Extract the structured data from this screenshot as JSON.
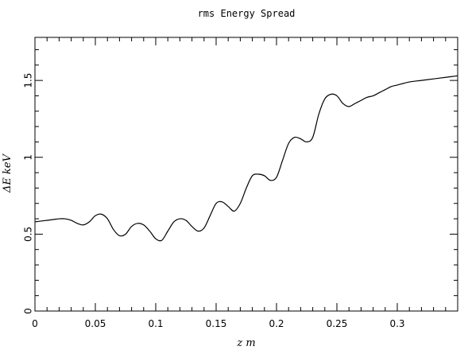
{
  "chart_data": {
    "type": "line",
    "title": "rms Energy Spread",
    "xlabel": "z  m",
    "ylabel": "ΔE keV",
    "xlim": [
      0,
      0.35
    ],
    "ylim": [
      0,
      1.78
    ],
    "xticks": [
      "0",
      "0.05",
      "0.1",
      "0.15",
      "0.2",
      "0.25",
      "0.3"
    ],
    "yticks": [
      "0",
      "0.5",
      "1",
      "1.5"
    ],
    "grid": false,
    "series": [
      {
        "x": [
          0,
          0.005,
          0.01,
          0.015,
          0.02,
          0.025,
          0.03,
          0.035,
          0.04,
          0.045,
          0.05,
          0.055,
          0.06,
          0.065,
          0.07,
          0.075,
          0.08,
          0.085,
          0.09,
          0.095,
          0.1,
          0.105,
          0.11,
          0.115,
          0.12,
          0.125,
          0.13,
          0.135,
          0.14,
          0.145,
          0.15,
          0.155,
          0.16,
          0.165,
          0.17,
          0.175,
          0.18,
          0.185,
          0.19,
          0.195,
          0.2,
          0.205,
          0.21,
          0.215,
          0.22,
          0.225,
          0.23,
          0.235,
          0.24,
          0.245,
          0.25,
          0.255,
          0.26,
          0.265,
          0.27,
          0.275,
          0.28,
          0.285,
          0.29,
          0.295,
          0.3,
          0.31,
          0.32,
          0.33,
          0.34,
          0.35
        ],
        "y": [
          0.58,
          0.585,
          0.59,
          0.595,
          0.6,
          0.6,
          0.59,
          0.57,
          0.56,
          0.58,
          0.62,
          0.63,
          0.6,
          0.53,
          0.49,
          0.5,
          0.55,
          0.57,
          0.56,
          0.52,
          0.47,
          0.46,
          0.52,
          0.58,
          0.6,
          0.59,
          0.55,
          0.52,
          0.54,
          0.62,
          0.7,
          0.71,
          0.68,
          0.65,
          0.7,
          0.8,
          0.88,
          0.89,
          0.88,
          0.85,
          0.87,
          0.98,
          1.09,
          1.13,
          1.12,
          1.1,
          1.13,
          1.28,
          1.38,
          1.41,
          1.4,
          1.35,
          1.33,
          1.35,
          1.37,
          1.39,
          1.4,
          1.42,
          1.44,
          1.46,
          1.47,
          1.49,
          1.5,
          1.51,
          1.52,
          1.53
        ]
      }
    ],
    "colors": {
      "line": "#000000",
      "axes": "#000000",
      "background": "#ffffff"
    }
  }
}
